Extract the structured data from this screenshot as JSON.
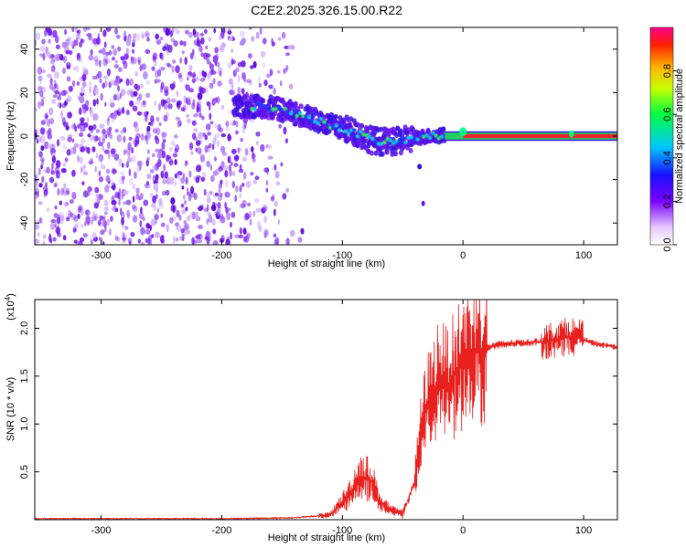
{
  "title": "C2E2.2025.326.15.00.R22",
  "chart_data": [
    {
      "type": "heatmap",
      "xlabel": "Height of straight line (km)",
      "ylabel": "Frequency (Hz)",
      "xlim": [
        -355,
        128
      ],
      "ylim": [
        -50,
        50
      ],
      "xticks": [
        -300,
        -200,
        -100,
        0,
        100
      ],
      "yticks": [
        -40,
        -20,
        0,
        20,
        40
      ],
      "grid": false,
      "noise_region_x": [
        -355,
        -140
      ],
      "ridge": {
        "x": [
          -190,
          -170,
          -150,
          -130,
          -110,
          -90,
          -75,
          -60,
          -50,
          -40,
          -30,
          -20,
          -10,
          0,
          20,
          50,
          90,
          128
        ],
        "y": [
          13,
          14,
          12,
          9,
          5,
          2,
          -2,
          -3,
          -2,
          -1,
          0,
          0,
          1,
          1,
          0,
          0,
          0,
          0
        ]
      },
      "colorbar": {
        "label": "Normalized spectral amplitude",
        "ticks": [
          0.0,
          0.2,
          0.4,
          0.6,
          0.8
        ],
        "range": [
          0,
          1
        ]
      }
    },
    {
      "type": "line",
      "xlabel": "Height of straight line (km)",
      "ylabel": "SNR (10 * v/v)",
      "multiplier": "(x10",
      "multiplier_exp": "4",
      "multiplier_close": ")",
      "xlim": [
        -355,
        128
      ],
      "ylim": [
        0,
        2.3
      ],
      "xticks": [
        -300,
        -200,
        -100,
        0,
        100
      ],
      "yticks": [
        0.5,
        1.0,
        1.5,
        2.0
      ],
      "color": "#e8201e",
      "series": [
        {
          "x": [
            -355,
            -200,
            -140,
            -110,
            -95,
            -85,
            -75,
            -70,
            -60,
            -50,
            -40,
            -35,
            -30,
            -25,
            -20,
            -15,
            -10,
            -5,
            0,
            10,
            20,
            30,
            50,
            70,
            80,
            90,
            100,
            110,
            128
          ],
          "y": [
            0.01,
            0.01,
            0.02,
            0.05,
            0.25,
            0.45,
            0.4,
            0.2,
            0.1,
            0.06,
            0.4,
            0.9,
            1.2,
            1.3,
            1.5,
            1.4,
            1.45,
            1.55,
            1.65,
            1.75,
            1.8,
            1.83,
            1.85,
            1.86,
            1.9,
            1.92,
            1.88,
            1.84,
            1.8
          ]
        }
      ]
    }
  ]
}
